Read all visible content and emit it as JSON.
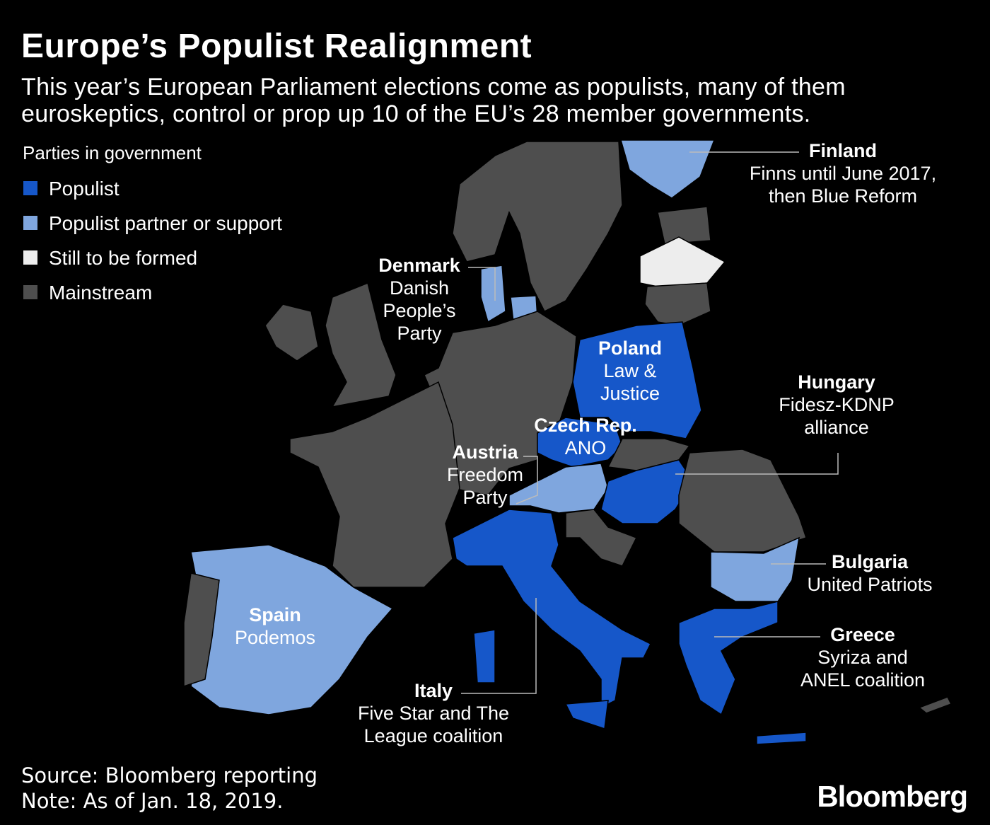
{
  "header": {
    "title": "Europe’s Populist Realignment",
    "subtitle": "This year’s European Parliament elections come as populists, many of them euroskeptics, control or prop up 10 of the EU’s 28 member governments."
  },
  "legend": {
    "title": "Parties in government",
    "items": [
      {
        "label": "Populist",
        "color": "#1657c9"
      },
      {
        "label": "Populist partner or support",
        "color": "#7fa6de"
      },
      {
        "label": "Still to be formed",
        "color": "#ededed"
      },
      {
        "label": "Mainstream",
        "color": "#4e4e4e"
      }
    ]
  },
  "countries": [
    {
      "name": "Finland",
      "party": [
        "Finns until June 2017,",
        "then Blue Reform"
      ]
    },
    {
      "name": "Denmark",
      "party": [
        "Danish",
        "People’s",
        "Party"
      ]
    },
    {
      "name": "Poland",
      "party": [
        "Law &",
        "Justice"
      ]
    },
    {
      "name": "Czech Rep.",
      "party": [
        "ANO"
      ]
    },
    {
      "name": "Austria",
      "party": [
        "Freedom",
        "Party"
      ]
    },
    {
      "name": "Hungary",
      "party": [
        "Fidesz-KDNP",
        "alliance"
      ]
    },
    {
      "name": "Bulgaria",
      "party": [
        "United Patriots"
      ]
    },
    {
      "name": "Greece",
      "party": [
        "Syriza and",
        "ANEL coalition"
      ]
    },
    {
      "name": "Spain",
      "party": [
        "Podemos"
      ]
    },
    {
      "name": "Italy",
      "party": [
        "Five Star and The",
        "League coalition"
      ]
    }
  ],
  "footer": {
    "source": "Source: Bloomberg reporting",
    "note": "Note: As of Jan. 18, 2019.",
    "brand": "Bloomberg"
  }
}
